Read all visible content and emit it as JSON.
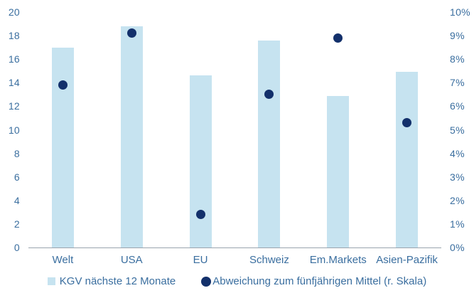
{
  "chart_data": {
    "type": "combo",
    "subtypes": [
      "bar",
      "scatter"
    ],
    "title": "",
    "categories": [
      "Welt",
      "USA",
      "EU",
      "Schweiz",
      "Em.Markets",
      "Asien-Pazifik"
    ],
    "series": [
      {
        "name": "KGV nächste 12 Monate",
        "type": "bar",
        "axis": "left",
        "values": [
          17.0,
          18.8,
          14.6,
          17.6,
          12.9,
          14.9
        ]
      },
      {
        "name": "Abweichung zum fünfjährigen Mittel (r. Skala)",
        "type": "scatter",
        "axis": "right",
        "values_percent": [
          6.9,
          9.1,
          1.4,
          6.5,
          8.9,
          5.3
        ]
      }
    ],
    "left_axis": {
      "min": 0,
      "max": 20,
      "step": 2,
      "tick_labels": [
        "0",
        "2",
        "4",
        "6",
        "8",
        "10",
        "12",
        "14",
        "16",
        "18",
        "20"
      ]
    },
    "right_axis": {
      "min": 0,
      "max": 10,
      "step": 1,
      "tick_labels": [
        "0%",
        "1%",
        "2%",
        "3%",
        "4%",
        "5%",
        "6%",
        "7%",
        "8%",
        "9%",
        "10%"
      ]
    },
    "legend": [
      {
        "label": "KGV nächste 12 Monate",
        "marker": "square-swatch-icon"
      },
      {
        "label": "Abweichung zum fünfjährigen Mittel (r. Skala)",
        "marker": "circle-swatch-icon"
      }
    ],
    "legend_position": "bottom",
    "grid": false,
    "colors": {
      "bar": "#c6e3f0",
      "dot": "#13306b",
      "text": "#3a6e9f",
      "axis_line": "#9aa4ae",
      "background": "#ffffff"
    }
  }
}
